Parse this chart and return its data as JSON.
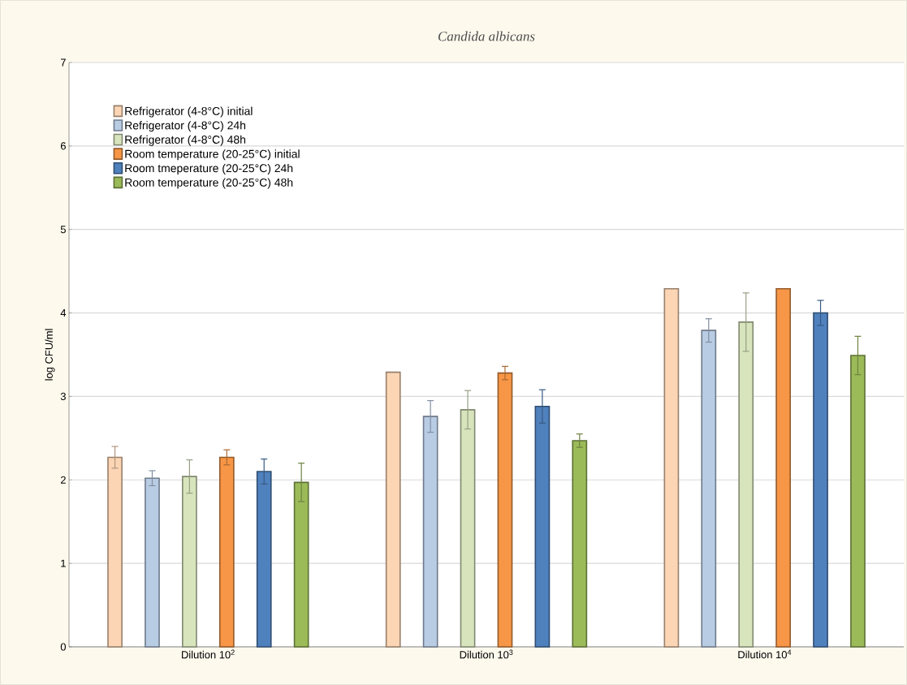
{
  "chart_data": {
    "type": "bar",
    "title": "*Candida albicans*",
    "ylabel": "log CFU/ml",
    "categories": [
      "Dilution 10$^{2}$",
      "Dilution 10$^{3}$",
      "Dilution 10$^{4}$"
    ],
    "series": [
      {
        "name": "Refrigerator (4-8°C)  initial",
        "color": "#fcd5b4",
        "values": [
          2.27,
          3.29,
          4.29
        ],
        "errors": [
          0.13,
          null,
          null
        ]
      },
      {
        "name": "Refrigerator (4-8°C) 24h",
        "color": "#b8cce4",
        "values": [
          2.02,
          2.76,
          3.79
        ],
        "errors": [
          0.09,
          0.19,
          0.14
        ]
      },
      {
        "name": "Refrigerator (4-8°C) 48h",
        "color": "#d7e4bc",
        "values": [
          2.04,
          2.84,
          3.89
        ],
        "errors": [
          0.2,
          0.23,
          0.35
        ]
      },
      {
        "name": "Room temperature (20-25°C) initial",
        "color": "#f79646",
        "values": [
          2.27,
          3.28,
          4.29
        ],
        "errors": [
          0.09,
          0.08,
          null
        ]
      },
      {
        "name": "Room tmeperature (20-25°C) 24h",
        "color": "#4f81bd",
        "values": [
          2.1,
          2.88,
          4.0
        ],
        "errors": [
          0.15,
          0.2,
          0.15
        ]
      },
      {
        "name": "Room temperature (20-25°C) 48h",
        "color": "#9bbb59",
        "values": [
          1.97,
          2.47,
          3.49
        ],
        "errors": [
          0.23,
          0.08,
          0.23
        ]
      }
    ],
    "ylim": [
      0,
      7
    ],
    "yticks": [
      0,
      1,
      2,
      3,
      4,
      5,
      6,
      7
    ],
    "grid": "y",
    "legend": "top left"
  }
}
